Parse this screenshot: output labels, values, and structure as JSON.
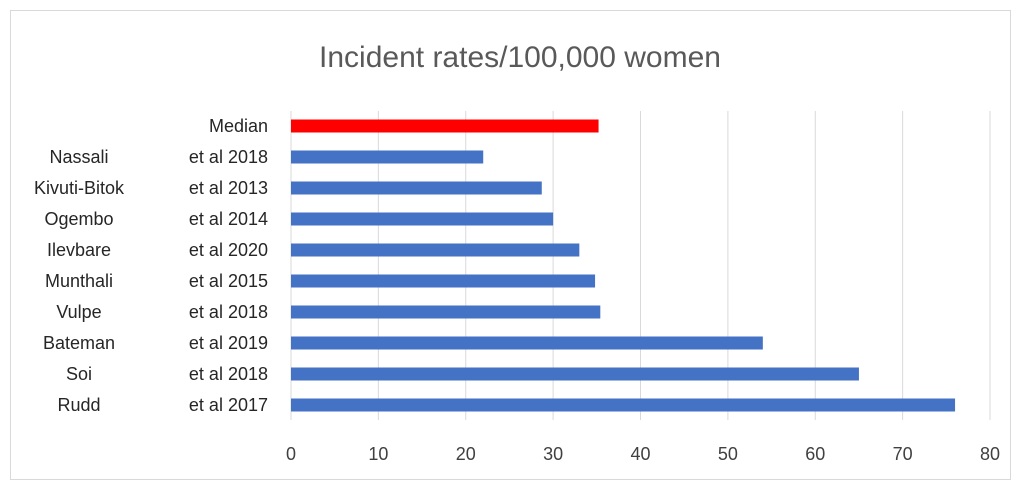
{
  "chart_data": {
    "type": "bar",
    "orientation": "horizontal",
    "title": "Incident rates/100,000 women",
    "xlabel": "",
    "ylabel": "",
    "xlim": [
      0,
      80
    ],
    "x_ticks": [
      "0",
      "10",
      "20",
      "30",
      "40",
      "50",
      "60",
      "70",
      "80"
    ],
    "grid": true,
    "legend": "none",
    "categories": [
      {
        "author": "",
        "detail": "Median"
      },
      {
        "author": "Nassali",
        "detail": "et al 2018"
      },
      {
        "author": "Kivuti-Bitok",
        "detail": "et al 2013"
      },
      {
        "author": "Ogembo",
        "detail": "et al 2014"
      },
      {
        "author": "Ilevbare",
        "detail": "et al 2020"
      },
      {
        "author": "Munthali",
        "detail": "et al 2015"
      },
      {
        "author": "Vulpe",
        "detail": "et al 2018"
      },
      {
        "author": "Bateman",
        "detail": "et al 2019"
      },
      {
        "author": "Soi",
        "detail": "et al 2018"
      },
      {
        "author": "Rudd",
        "detail": "et al 2017"
      }
    ],
    "values": [
      35.2,
      22,
      28.7,
      30,
      33,
      34.8,
      35.4,
      54,
      65,
      76
    ],
    "colors": [
      "#ff0000",
      "#4472c4",
      "#4472c4",
      "#4472c4",
      "#4472c4",
      "#4472c4",
      "#4472c4",
      "#4472c4",
      "#4472c4",
      "#4472c4"
    ],
    "gridline_color": "#d9d9d9"
  }
}
